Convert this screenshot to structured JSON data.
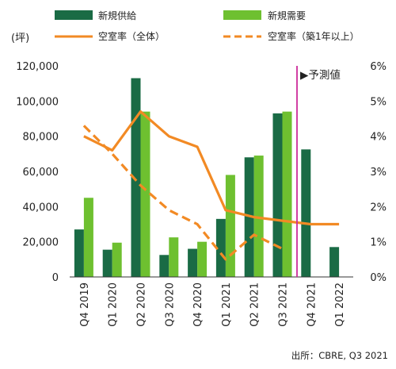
{
  "chart_data": {
    "type": "bar",
    "y_unit_label": "(坪)",
    "categories": [
      "Q4 2019",
      "Q1 2020",
      "Q2 2020",
      "Q3 2020",
      "Q4 2020",
      "Q1 2021",
      "Q2 2021",
      "Q3 2021",
      "Q4 2021",
      "Q1 2022"
    ],
    "ylim_left": [
      0,
      120000
    ],
    "yticks_left": [
      "0",
      "20,000",
      "40,000",
      "60,000",
      "80,000",
      "100,000",
      "120,000"
    ],
    "ylim_right": [
      0,
      6
    ],
    "yticks_right": [
      "0%",
      "1%",
      "2%",
      "3%",
      "4%",
      "5%",
      "6%"
    ],
    "series": [
      {
        "name": "新規供給",
        "type": "bar",
        "color": "#1a6b45",
        "values": [
          27000,
          15500,
          113000,
          12500,
          16000,
          33000,
          68000,
          93000,
          72500,
          17000
        ]
      },
      {
        "name": "新規需要",
        "type": "bar",
        "color": "#6ec030",
        "values": [
          45000,
          19500,
          94000,
          22500,
          20000,
          58000,
          69000,
          94000,
          null,
          null
        ]
      },
      {
        "name": "空室率（全体）",
        "type": "line",
        "axis": "right",
        "style": "solid",
        "color": "#f28a24",
        "values": [
          4.0,
          3.6,
          4.7,
          4.0,
          3.7,
          1.9,
          1.7,
          1.6,
          1.5,
          1.5
        ]
      },
      {
        "name": "空室率（築1年以上）",
        "type": "line",
        "axis": "right",
        "style": "dashed",
        "color": "#f28a24",
        "values": [
          4.3,
          3.5,
          2.6,
          1.9,
          1.5,
          0.5,
          1.2,
          0.8,
          null,
          null
        ]
      }
    ],
    "forecast_label": "▶予測値",
    "forecast_line_color": "#cc2a9a",
    "grid": false,
    "legend_position": "top"
  },
  "source": "出所：CBRE, Q3 2021"
}
